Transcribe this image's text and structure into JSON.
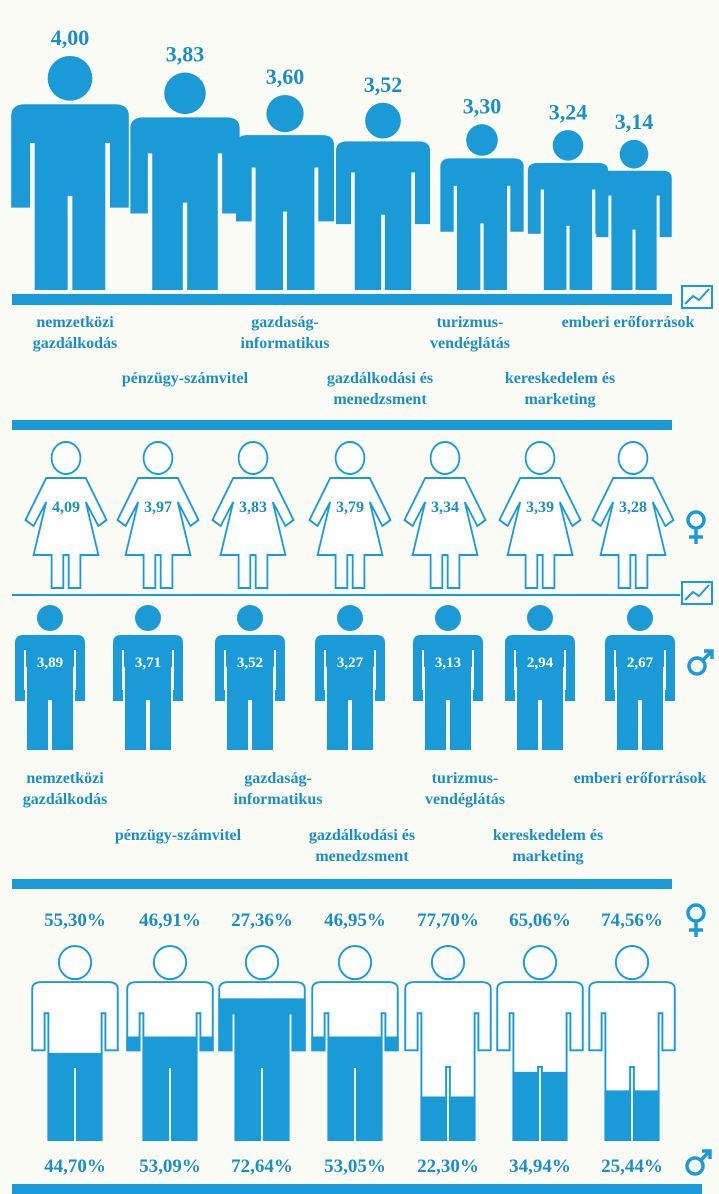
{
  "chart_data": [
    {
      "type": "pictograph",
      "categories": [
        "nemzetközi gazdálkodás",
        "pénzügy-számvitel",
        "gazdaság-informatikus",
        "gazdálkodási és menedzsment",
        "turizmus-vendéglátás",
        "kereskedelem és marketing",
        "emberi erőforrások"
      ],
      "values": [
        4.0,
        3.83,
        3.6,
        3.52,
        3.3,
        3.24,
        3.14
      ],
      "value_labels": [
        "4,00",
        "3,83",
        "3,60",
        "3,52",
        "3,30",
        "3,24",
        "3,14"
      ],
      "color": "#1a9bd7"
    },
    {
      "type": "outline-pictograph",
      "values": [
        4.09,
        3.97,
        3.83,
        3.79,
        3.34,
        3.39,
        3.28
      ],
      "value_labels": [
        "4,09",
        "3,97",
        "3,83",
        "3,79",
        "3,34",
        "3,39",
        "3,28"
      ],
      "color": "#1a9bd7"
    },
    {
      "type": "filled-pictograph",
      "categories": [
        "nemzetközi gazdálkodás",
        "pénzügy-számvitel",
        "gazdaság-informatikus",
        "gazdálkodási és menedzsment",
        "turizmus-vendéglátás",
        "kereskedelem és marketing",
        "emberi erőforrások"
      ],
      "values": [
        3.89,
        3.71,
        3.52,
        3.27,
        3.13,
        2.94,
        2.67
      ],
      "value_labels": [
        "3,89",
        "3,71",
        "3,52",
        "3,27",
        "3,13",
        "2,94",
        "2,67"
      ],
      "color": "#1a9bd7"
    },
    {
      "type": "stacked-pictograph",
      "series": [
        {
          "color": "#ffffff",
          "values": [
            55.3,
            46.91,
            27.36,
            46.95,
            77.7,
            65.06,
            74.56
          ],
          "value_labels": [
            "55,30%",
            "46,91%",
            "27,36%",
            "46,95%",
            "77,70%",
            "65,06%",
            "74,56%"
          ]
        },
        {
          "color": "#1a9bd7",
          "values": [
            44.7,
            53.09,
            72.64,
            53.05,
            22.3,
            34.94,
            25.44
          ],
          "value_labels": [
            "44,70%",
            "53,09%",
            "72,64%",
            "53,05%",
            "22,30%",
            "34,94%",
            "25,44%"
          ]
        }
      ]
    }
  ]
}
